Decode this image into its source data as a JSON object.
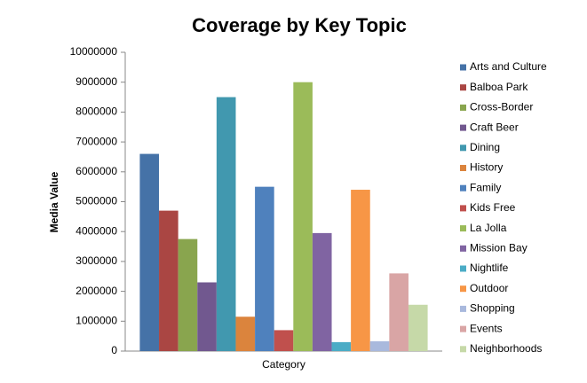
{
  "chart_data": {
    "type": "bar",
    "title": "Coverage by Key Topic",
    "y_label": "Media Value",
    "categories": [
      "Category"
    ],
    "series": [
      {
        "name": "Arts and Culture",
        "color": "#4572A7",
        "values": [
          6600000
        ]
      },
      {
        "name": "Balboa Park",
        "color": "#AA4643",
        "values": [
          4700000
        ]
      },
      {
        "name": "Cross-Border",
        "color": "#89A54E",
        "values": [
          3750000
        ]
      },
      {
        "name": "Craft Beer",
        "color": "#71588F",
        "values": [
          2300000
        ]
      },
      {
        "name": "Dining",
        "color": "#4198AF",
        "values": [
          8500000
        ]
      },
      {
        "name": "History",
        "color": "#DB843D",
        "values": [
          1150000
        ]
      },
      {
        "name": "Family",
        "color": "#4F81BD",
        "values": [
          5500000
        ]
      },
      {
        "name": "Kids Free",
        "color": "#C0504D",
        "values": [
          700000
        ]
      },
      {
        "name": "La Jolla",
        "color": "#9BBB59",
        "values": [
          9000000
        ]
      },
      {
        "name": "Mission Bay",
        "color": "#8064A2",
        "values": [
          3950000
        ]
      },
      {
        "name": "Nightlife",
        "color": "#4BACC6",
        "values": [
          300000
        ]
      },
      {
        "name": "Outdoor",
        "color": "#F79646",
        "values": [
          5400000
        ]
      },
      {
        "name": "Shopping",
        "color": "#A9B9DD",
        "values": [
          330000
        ]
      },
      {
        "name": "Events",
        "color": "#D9A5A5",
        "values": [
          2600000
        ]
      },
      {
        "name": "Neighborhoods",
        "color": "#C6D9A8",
        "values": [
          1550000
        ]
      }
    ],
    "ylim": [
      0,
      10000000
    ],
    "yticks": [
      0,
      1000000,
      2000000,
      3000000,
      4000000,
      5000000,
      6000000,
      7000000,
      8000000,
      9000000,
      10000000
    ],
    "grid": false,
    "legend": "right"
  }
}
